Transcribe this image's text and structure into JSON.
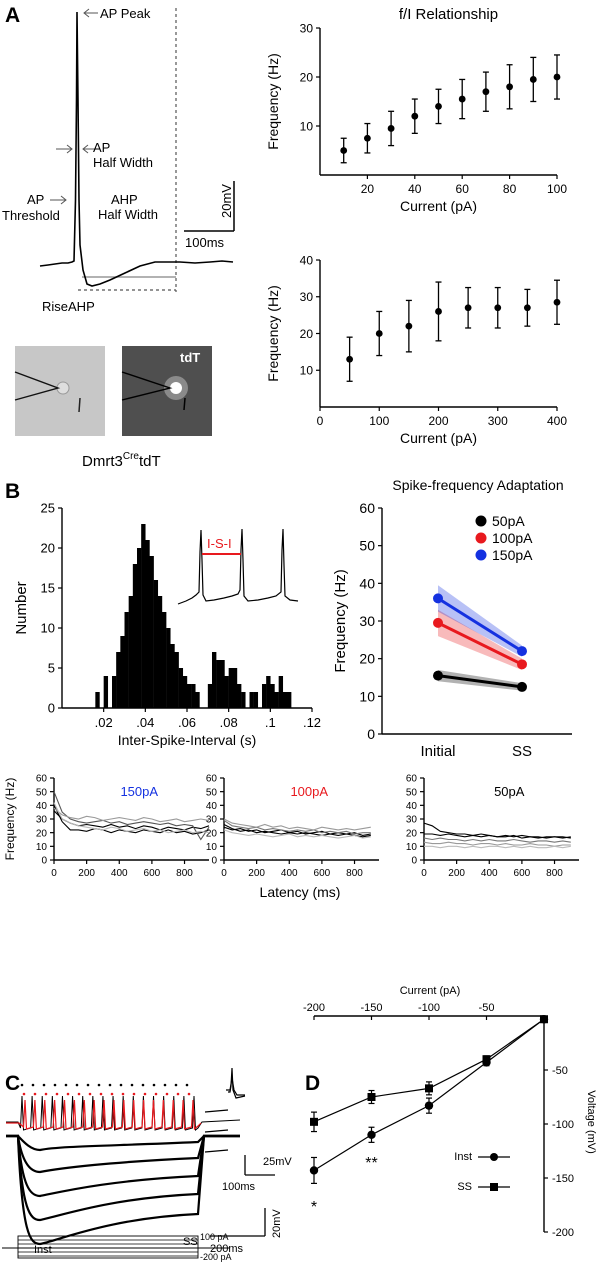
{
  "panel_labels": {
    "a": "A",
    "b": "B",
    "c": "C",
    "d": "D"
  },
  "colors": {
    "black": "#000000",
    "red": "#e8191e",
    "blue": "#1431e0",
    "gray": "#9a9a9a"
  },
  "panel_a": {
    "trace_labels": {
      "ap_peak": "AP Peak",
      "ap": "AP",
      "ap_half_width": "Half Width",
      "ap_threshold_1": "AP",
      "ap_threshold_2": "Threshold",
      "ahp_1": "AHP",
      "ahp_2": "Half Width",
      "rise_ahp": "RiseAHP",
      "scale_v": "20mV",
      "scale_t": "100ms"
    },
    "image_label": "tdT"
  },
  "panel_b": {
    "genotype_prefix": "Dmrt3",
    "genotype_super": "Cre",
    "genotype_suffix": "tdT",
    "inset_label": "I-S-I",
    "latency_xlabel": "Latency (ms)",
    "latency_ylabel": "Frequency (Hz)",
    "latency_titles": [
      "150pA",
      "100pA",
      "50pA"
    ]
  },
  "panel_c": {
    "scale1_v": "25mV",
    "scale1_t": "100ms",
    "scale2_v": "20mV",
    "scale2_t": "200ms",
    "label_ss": "SS",
    "label_inst": "Inst",
    "step_top": "100 pA",
    "step_bottom": "-200 pA"
  },
  "chart_data": [
    {
      "id": "fi1",
      "type": "scatter",
      "title": "f/I Relationship",
      "xlabel": "Current (pA)",
      "ylabel": "Frequency (Hz)",
      "xlim": [
        0,
        100
      ],
      "ylim": [
        0,
        30
      ],
      "xticks": [
        20,
        40,
        60,
        80,
        100
      ],
      "yticks": [
        10,
        20,
        30
      ],
      "x": [
        10,
        20,
        30,
        40,
        50,
        60,
        70,
        80,
        90,
        100
      ],
      "y": [
        5,
        7.5,
        9.5,
        12,
        14,
        15.5,
        17,
        18,
        19.5,
        20
      ],
      "err": [
        2.5,
        3,
        3.5,
        3.5,
        3.5,
        4,
        4,
        4.5,
        4.5,
        4.5
      ]
    },
    {
      "id": "fi2",
      "type": "scatter",
      "title": "",
      "xlabel": "Current (pA)",
      "ylabel": "Frequency (Hz)",
      "xlim": [
        0,
        400
      ],
      "ylim": [
        0,
        40
      ],
      "xticks": [
        0,
        100,
        200,
        300,
        400
      ],
      "yticks": [
        10,
        20,
        30,
        40
      ],
      "x": [
        50,
        100,
        150,
        200,
        250,
        300,
        350,
        400
      ],
      "y": [
        13,
        20,
        22,
        26,
        27,
        27,
        27,
        28.5
      ],
      "err": [
        6,
        6,
        7,
        8,
        5.5,
        5.5,
        5,
        6
      ]
    },
    {
      "id": "isi",
      "type": "bar",
      "title": "",
      "xlabel": "Inter-Spike-Interval (s)",
      "ylabel": "Number",
      "xlim": [
        0,
        0.12
      ],
      "ylim": [
        0,
        25
      ],
      "xticks": [
        0.02,
        0.04,
        0.06,
        0.08,
        0.1,
        0.12
      ],
      "yticks": [
        0,
        5,
        10,
        15,
        20,
        25
      ],
      "bin_width": 0.002,
      "bin_start": 0.016,
      "values": [
        2,
        0,
        4,
        0,
        4,
        7,
        9,
        12,
        14,
        18,
        20,
        23,
        21,
        19,
        16,
        14,
        12,
        10,
        8,
        7,
        5,
        4,
        3,
        3,
        2,
        0,
        0,
        3,
        7,
        6,
        6,
        4,
        5,
        5,
        3,
        2,
        0,
        2,
        2,
        0,
        3,
        4,
        3,
        2,
        4,
        2,
        2
      ]
    },
    {
      "id": "sfa",
      "type": "line",
      "title": "Spike-frequency Adaptation",
      "xlabel": "",
      "ylabel": "Frequency (Hz)",
      "categories": [
        "Initial",
        "SS"
      ],
      "ylim": [
        0,
        60
      ],
      "yticks": [
        0,
        10,
        20,
        30,
        40,
        50,
        60
      ],
      "series": [
        {
          "name": "50pA",
          "color": "#000000",
          "values": [
            15.5,
            12.5
          ],
          "band": [
            1.5,
            1
          ]
        },
        {
          "name": "100pA",
          "color": "#e8191e",
          "values": [
            29.5,
            18.5
          ],
          "band": [
            3.5,
            1.5
          ]
        },
        {
          "name": "150pA",
          "color": "#1431e0",
          "values": [
            36,
            22
          ],
          "band": [
            3.5,
            1.5
          ]
        }
      ]
    },
    {
      "id": "lat150",
      "type": "line",
      "title": "150pA",
      "xlim": [
        0,
        950
      ],
      "ylim": [
        0,
        60
      ],
      "xticks": [
        0,
        200,
        400,
        600,
        800
      ],
      "yticks": [
        0,
        10,
        20,
        30,
        40,
        50,
        60
      ],
      "x": [
        0,
        50,
        100,
        150,
        200,
        250,
        300,
        350,
        400,
        450,
        500,
        550,
        600,
        650,
        700,
        750,
        800,
        850,
        900,
        950
      ],
      "series": [
        {
          "name": "trace1",
          "color": "#000000",
          "values": [
            40,
            28,
            22,
            22,
            21,
            23,
            22,
            20,
            22,
            21,
            20,
            22,
            21,
            20,
            22,
            20,
            21,
            19,
            20,
            22
          ]
        },
        {
          "name": "trace2",
          "color": "#000000",
          "values": [
            36,
            30,
            27,
            25,
            26,
            25,
            24,
            26,
            24,
            25,
            23,
            25,
            24,
            22,
            24,
            23,
            22,
            24,
            23,
            25
          ]
        },
        {
          "name": "trace3",
          "color": "#555555",
          "values": [
            50,
            35,
            30,
            28,
            27,
            28,
            29,
            27,
            28,
            26,
            27,
            28,
            27,
            26,
            27,
            25,
            26,
            25,
            15,
            24
          ]
        },
        {
          "name": "trace4",
          "color": "#9a9a9a",
          "values": [
            38,
            33,
            31,
            30,
            32,
            31,
            29,
            30,
            31,
            30,
            29,
            31,
            30,
            28,
            29,
            30,
            28,
            29,
            30,
            29
          ]
        },
        {
          "name": "trace5",
          "color": "#bbbbbb",
          "values": [
            42,
            30,
            27,
            25,
            24,
            23,
            22,
            24,
            23,
            21,
            22,
            23,
            21,
            22,
            20,
            21,
            22,
            20,
            21,
            20
          ]
        }
      ]
    },
    {
      "id": "lat100",
      "type": "line",
      "title": "100pA",
      "xlim": [
        0,
        950
      ],
      "ylim": [
        0,
        60
      ],
      "xticks": [
        0,
        200,
        400,
        600,
        800
      ],
      "yticks": [
        0,
        10,
        20,
        30,
        40,
        50,
        60
      ],
      "x": [
        0,
        50,
        100,
        150,
        200,
        250,
        300,
        350,
        400,
        450,
        500,
        550,
        600,
        650,
        700,
        750,
        800,
        850,
        900
      ],
      "series": [
        {
          "name": "trace1",
          "color": "#000000",
          "values": [
            26,
            23,
            21,
            22,
            20,
            21,
            20,
            19,
            20,
            19,
            20,
            19,
            18,
            19,
            18,
            19,
            18,
            17,
            18
          ]
        },
        {
          "name": "trace2",
          "color": "#000000",
          "values": [
            24,
            22,
            23,
            21,
            22,
            20,
            21,
            22,
            20,
            21,
            19,
            20,
            21,
            19,
            20,
            19,
            20,
            18,
            19
          ]
        },
        {
          "name": "trace3",
          "color": "#777777",
          "values": [
            29,
            25,
            24,
            23,
            24,
            22,
            23,
            22,
            21,
            22,
            21,
            22,
            20,
            21,
            20,
            21,
            19,
            20,
            20
          ]
        },
        {
          "name": "trace4",
          "color": "#9a9a9a",
          "values": [
            30,
            27,
            26,
            25,
            24,
            26,
            24,
            25,
            23,
            24,
            23,
            22,
            24,
            23,
            22,
            23,
            22,
            23,
            24
          ]
        },
        {
          "name": "trace5",
          "color": "#bbbbbb",
          "values": [
            22,
            20,
            19,
            18,
            19,
            18,
            17,
            18,
            19,
            17,
            18,
            17,
            18,
            17,
            16,
            17,
            18,
            16,
            17
          ]
        }
      ]
    },
    {
      "id": "lat50",
      "type": "line",
      "title": "50pA",
      "xlim": [
        0,
        950
      ],
      "ylim": [
        0,
        60
      ],
      "xticks": [
        0,
        200,
        400,
        600,
        800
      ],
      "yticks": [
        0,
        10,
        20,
        30,
        40,
        50,
        60
      ],
      "x": [
        0,
        50,
        100,
        150,
        200,
        250,
        300,
        350,
        400,
        450,
        500,
        550,
        600,
        650,
        700,
        750,
        800,
        850,
        900
      ],
      "series": [
        {
          "name": "trace1",
          "color": "#000000",
          "values": [
            27,
            25,
            21,
            20,
            19,
            19,
            18,
            19,
            18,
            17,
            18,
            17,
            18,
            17,
            16,
            17,
            17,
            16,
            17
          ]
        },
        {
          "name": "trace2",
          "color": "#000000",
          "values": [
            19,
            19,
            18,
            19,
            18,
            17,
            18,
            17,
            18,
            17,
            17,
            18,
            16,
            17,
            17,
            16,
            17,
            17,
            16
          ]
        },
        {
          "name": "trace3",
          "color": "#777777",
          "values": [
            16,
            15,
            16,
            15,
            15,
            14,
            15,
            14,
            15,
            14,
            14,
            15,
            14,
            13,
            14,
            14,
            13,
            14,
            13
          ]
        },
        {
          "name": "trace4",
          "color": "#9a9a9a",
          "values": [
            13,
            12,
            12,
            13,
            12,
            12,
            11,
            12,
            12,
            11,
            12,
            11,
            11,
            12,
            11,
            11,
            10,
            11,
            11
          ]
        },
        {
          "name": "trace5",
          "color": "#bbbbbb",
          "values": [
            10,
            10,
            9,
            10,
            10,
            9,
            10,
            9,
            10,
            10,
            9,
            10,
            9,
            10,
            9,
            9,
            10,
            9,
            10
          ]
        }
      ],
      "xlabel": "Latency (ms)"
    },
    {
      "id": "iv",
      "type": "line",
      "title": "",
      "xlabel": "Current (pA)",
      "ylabel": "Voltage (mV)",
      "xlim": [
        -200,
        0
      ],
      "ylim": [
        -200,
        0
      ],
      "xticks": [
        -200,
        -150,
        -100,
        -50
      ],
      "yticks": [
        -50,
        -100,
        -150,
        -200
      ],
      "x": [
        -200,
        -150,
        -100,
        -50,
        0
      ],
      "series": [
        {
          "name": "Inst",
          "marker": "circle",
          "values": [
            -143,
            -110,
            -83,
            -43,
            -3
          ],
          "err": [
            12,
            7,
            7,
            3,
            2
          ]
        },
        {
          "name": "SS",
          "marker": "square",
          "values": [
            -98,
            -75,
            -67,
            -40,
            -3
          ],
          "err": [
            9,
            6,
            6,
            3,
            2
          ]
        }
      ],
      "annotations": [
        "*",
        "**"
      ]
    }
  ]
}
